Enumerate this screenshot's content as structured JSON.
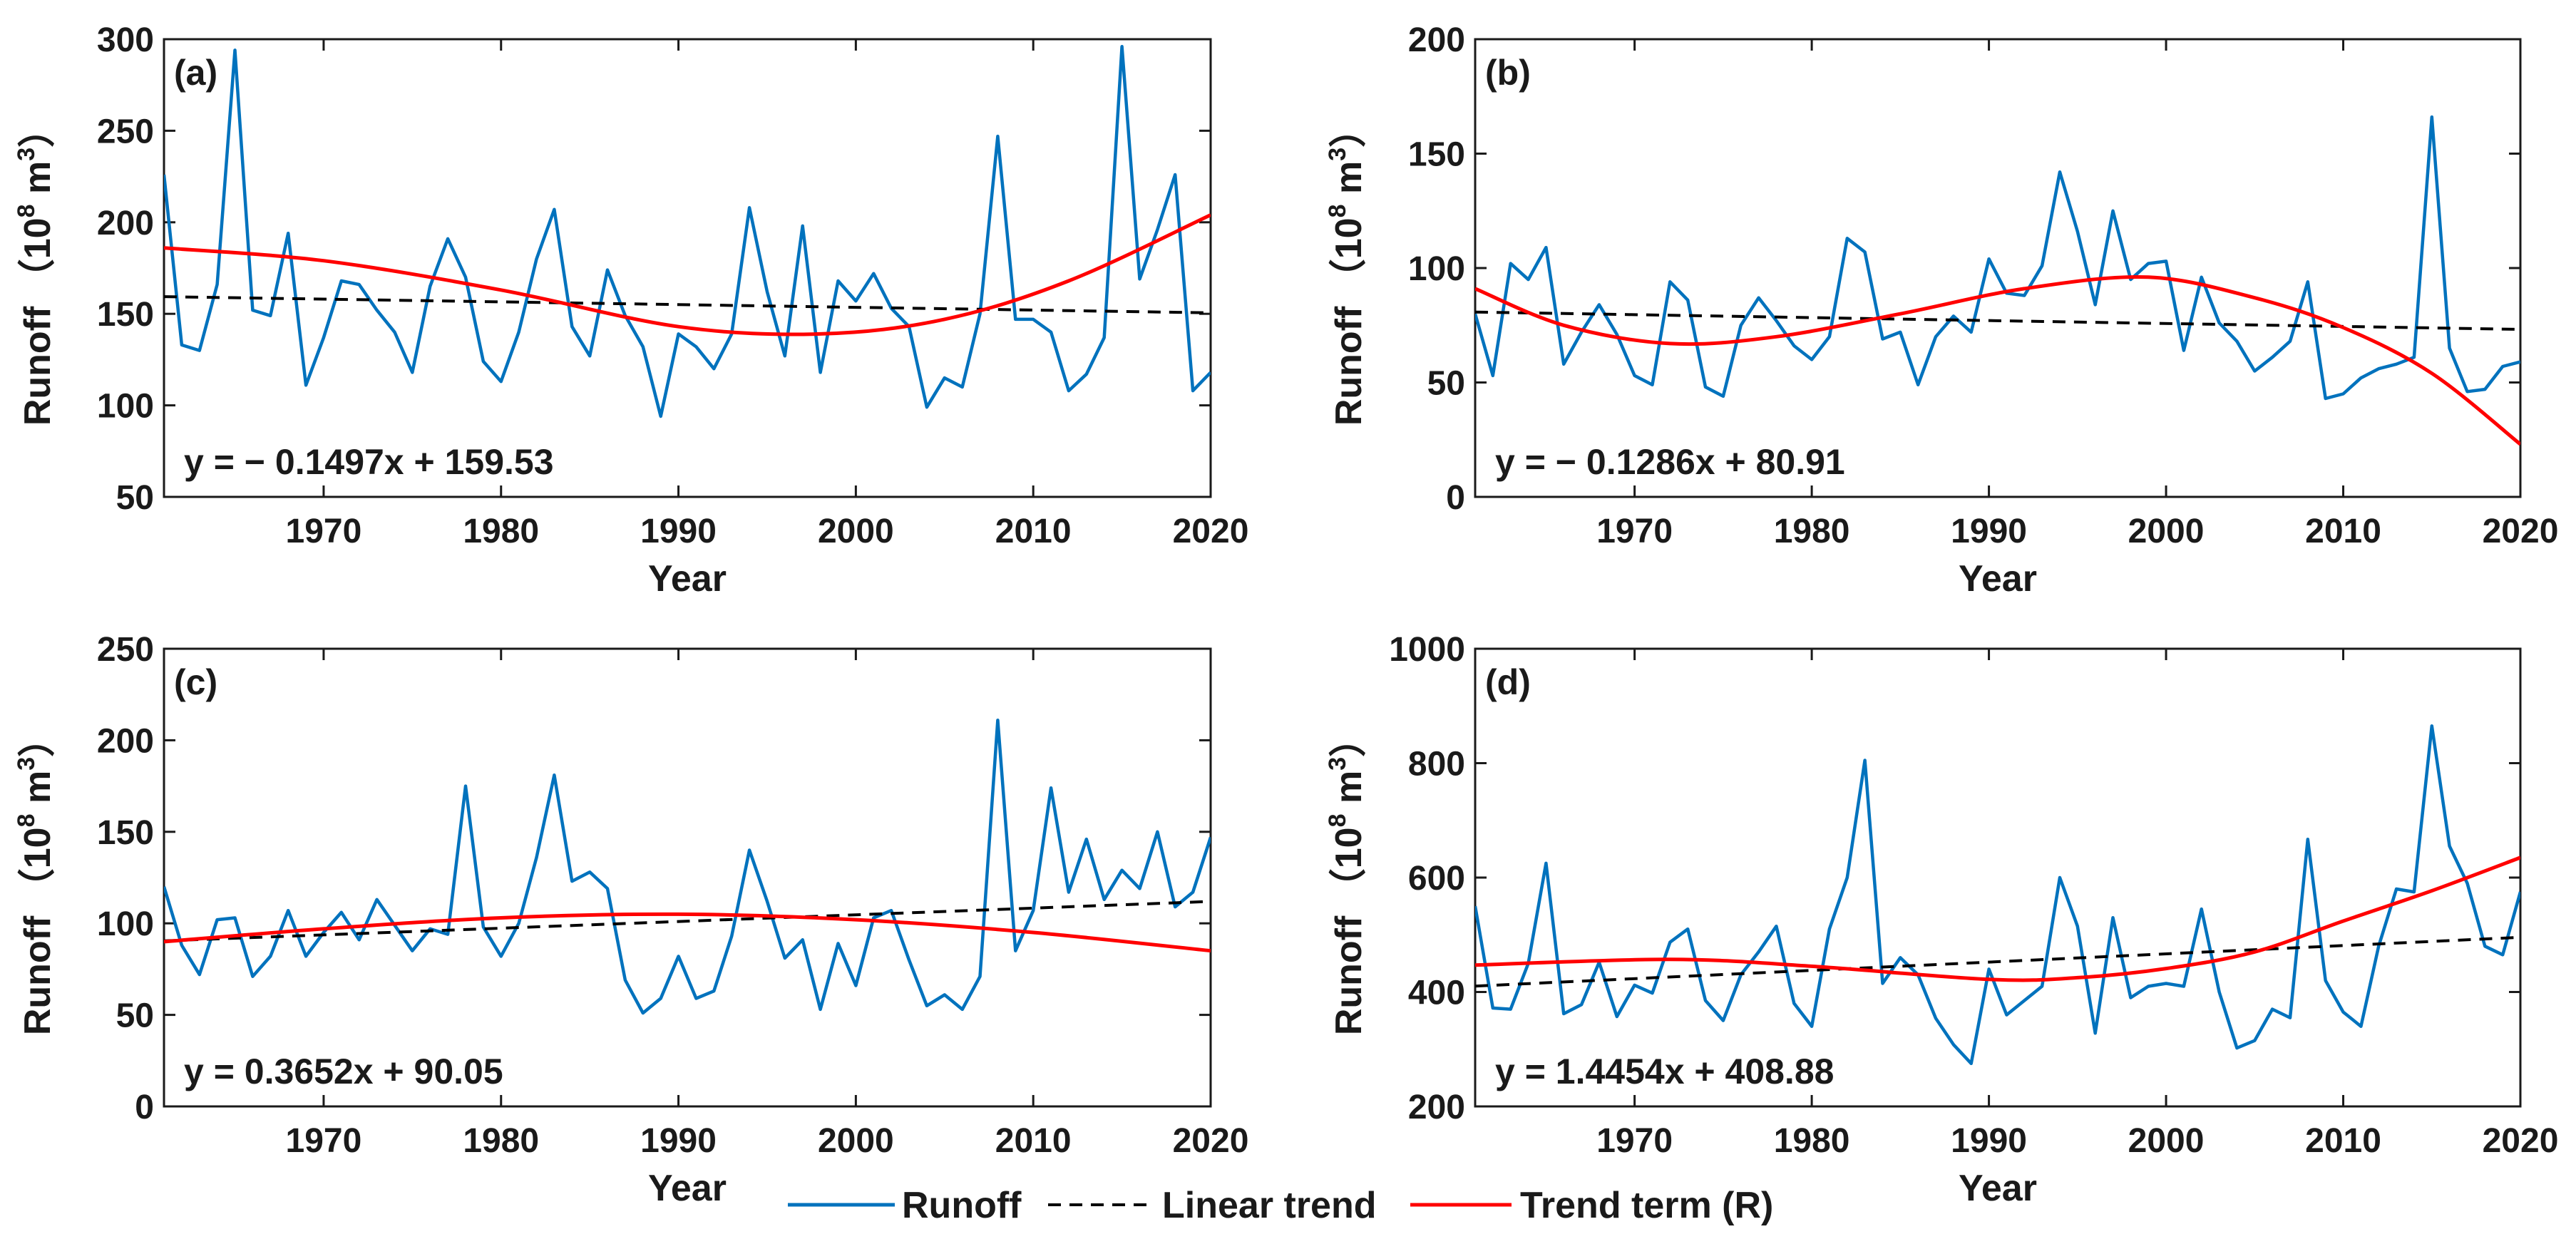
{
  "colors": {
    "runoff": "#0072BD",
    "linear_trend": "#000000",
    "trend_term": "#FF0000",
    "axes": "#1a1a1a"
  },
  "legend": {
    "runoff": "Runoff",
    "linear_trend": "Linear trend",
    "trend_term": "Trend term (R)"
  },
  "chart_data": [
    {
      "id": "a",
      "type": "line",
      "label": "(a)",
      "xlabel": "Year",
      "ylabel": "Runoff",
      "ylabel_unit_base": "10",
      "ylabel_unit_exp": "8",
      "ylabel_unit_tail": "m",
      "ylabel_unit_exp2": "3",
      "xlim": [
        1961,
        2020
      ],
      "ylim": [
        50,
        300
      ],
      "xticks": [
        1970,
        1980,
        1990,
        2000,
        2010,
        2020
      ],
      "yticks": [
        50,
        100,
        150,
        200,
        250,
        300
      ],
      "equation": "y = − 0.1497x + 159.53",
      "linear": {
        "slope": -0.1497,
        "intercept": 159.53
      },
      "trend_points": [
        [
          1961,
          186
        ],
        [
          1970,
          179
        ],
        [
          1980,
          163
        ],
        [
          1990,
          143
        ],
        [
          1998,
          139
        ],
        [
          2005,
          147
        ],
        [
          2012,
          168
        ],
        [
          2020,
          204
        ]
      ],
      "series": [
        {
          "name": "Runoff",
          "x_start": 1961,
          "values": [
            226,
            133,
            130,
            166,
            294,
            152,
            149,
            194,
            111,
            137,
            168,
            166,
            152,
            140,
            118,
            165,
            191,
            170,
            124,
            113,
            140,
            180,
            207,
            143,
            127,
            174,
            149,
            132,
            94,
            139,
            132,
            120,
            139,
            208,
            162,
            127,
            198,
            118,
            168,
            157,
            172,
            153,
            143,
            99,
            115,
            110,
            150,
            247,
            147,
            147,
            140,
            108,
            117,
            137,
            296,
            169,
            196,
            226,
            108,
            118
          ]
        }
      ]
    },
    {
      "id": "b",
      "type": "line",
      "label": "(b)",
      "xlabel": "Year",
      "ylabel": "Runoff",
      "ylabel_unit_base": "10",
      "ylabel_unit_exp": "8",
      "ylabel_unit_tail": "m",
      "ylabel_unit_exp2": "3",
      "xlim": [
        1961,
        2020
      ],
      "ylim": [
        0,
        200
      ],
      "xticks": [
        1970,
        1980,
        1990,
        2000,
        2010,
        2020
      ],
      "yticks": [
        0,
        50,
        100,
        150,
        200
      ],
      "equation": "y = − 0.1286x + 80.91",
      "linear": {
        "slope": -0.1286,
        "intercept": 80.91
      },
      "trend_points": [
        [
          1961,
          91
        ],
        [
          1966,
          75
        ],
        [
          1972,
          67
        ],
        [
          1978,
          70
        ],
        [
          1985,
          80
        ],
        [
          1992,
          91
        ],
        [
          1999,
          96
        ],
        [
          2005,
          87
        ],
        [
          2010,
          74
        ],
        [
          2015,
          54
        ],
        [
          2020,
          23
        ]
      ],
      "series": [
        {
          "name": "Runoff",
          "x_start": 1961,
          "values": [
            80,
            53,
            102,
            95,
            109,
            58,
            72,
            84,
            71,
            53,
            49,
            94,
            86,
            48,
            44,
            75,
            87,
            77,
            66,
            60,
            70,
            113,
            107,
            69,
            72,
            49,
            70,
            79,
            72,
            104,
            89,
            88,
            101,
            142,
            116,
            84,
            125,
            95,
            102,
            103,
            64,
            96,
            76,
            68,
            55,
            61,
            68,
            94,
            43,
            45,
            52,
            56,
            58,
            61,
            166,
            65,
            46,
            47,
            57,
            59
          ]
        }
      ]
    },
    {
      "id": "c",
      "type": "line",
      "label": "(c)",
      "xlabel": "Year",
      "ylabel": "Runoff",
      "ylabel_unit_base": "10",
      "ylabel_unit_exp": "8",
      "ylabel_unit_tail": "m",
      "ylabel_unit_exp2": "3",
      "xlim": [
        1961,
        2020
      ],
      "ylim": [
        0,
        250
      ],
      "xticks": [
        1970,
        1980,
        1990,
        2000,
        2010,
        2020
      ],
      "yticks": [
        0,
        50,
        100,
        150,
        200,
        250
      ],
      "equation": "y = 0.3652x + 90.05",
      "linear": {
        "slope": 0.3652,
        "intercept": 90.05
      },
      "trend_points": [
        [
          1961,
          90
        ],
        [
          1970,
          97
        ],
        [
          1980,
          103
        ],
        [
          1990,
          105
        ],
        [
          2000,
          102
        ],
        [
          2010,
          95
        ],
        [
          2020,
          85
        ]
      ],
      "series": [
        {
          "name": "Runoff",
          "x_start": 1961,
          "values": [
            120,
            88,
            72,
            102,
            103,
            71,
            82,
            107,
            82,
            95,
            106,
            91,
            113,
            99,
            85,
            97,
            94,
            175,
            98,
            82,
            100,
            136,
            181,
            123,
            128,
            119,
            69,
            51,
            59,
            82,
            59,
            63,
            93,
            140,
            112,
            81,
            91,
            53,
            89,
            66,
            103,
            107,
            80,
            55,
            61,
            53,
            71,
            211,
            85,
            107,
            174,
            117,
            146,
            113,
            129,
            119,
            150,
            109,
            117,
            147
          ]
        }
      ]
    },
    {
      "id": "d",
      "type": "line",
      "label": "(d)",
      "xlabel": "Year",
      "ylabel": "Runoff",
      "ylabel_unit_base": "10",
      "ylabel_unit_exp": "8",
      "ylabel_unit_tail": "m",
      "ylabel_unit_exp2": "3",
      "xlim": [
        1961,
        2020
      ],
      "ylim": [
        200,
        1000
      ],
      "xticks": [
        1970,
        1980,
        1990,
        2000,
        2010,
        2020
      ],
      "yticks": [
        200,
        400,
        600,
        800,
        1000
      ],
      "equation": "y = 1.4454x + 408.88",
      "linear": {
        "slope": 1.4454,
        "intercept": 408.88
      },
      "trend_points": [
        [
          1961,
          447
        ],
        [
          1972,
          457
        ],
        [
          1980,
          445
        ],
        [
          1990,
          422
        ],
        [
          1995,
          425
        ],
        [
          2000,
          441
        ],
        [
          2005,
          470
        ],
        [
          2010,
          524
        ],
        [
          2015,
          577
        ],
        [
          2020,
          635
        ]
      ],
      "series": [
        {
          "name": "Runoff",
          "x_start": 1961,
          "values": [
            550,
            372,
            370,
            450,
            625,
            362,
            378,
            452,
            357,
            412,
            398,
            487,
            510,
            385,
            350,
            430,
            470,
            515,
            380,
            340,
            510,
            600,
            805,
            415,
            460,
            430,
            354,
            308,
            275,
            440,
            360,
            385,
            410,
            600,
            515,
            328,
            530,
            390,
            410,
            415,
            410,
            545,
            400,
            302,
            315,
            370,
            355,
            667,
            420,
            365,
            340,
            480,
            580,
            575,
            865,
            655,
            590,
            480,
            465,
            575
          ]
        }
      ]
    }
  ]
}
